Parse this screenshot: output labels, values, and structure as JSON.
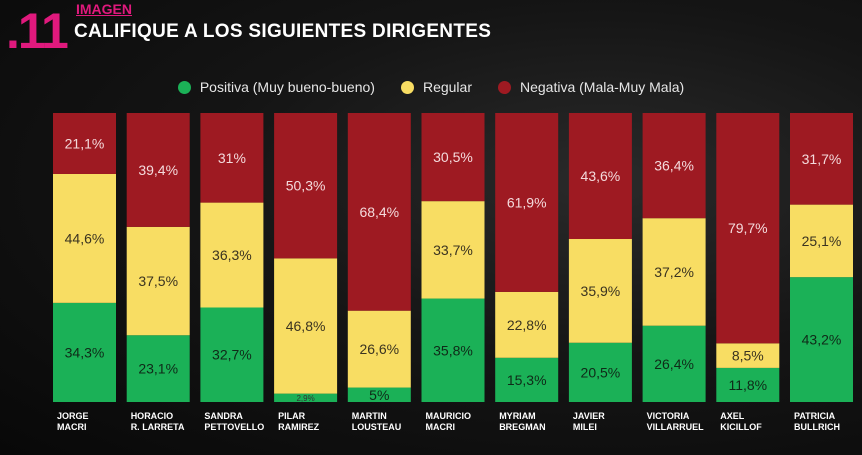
{
  "header": {
    "slide_number": ".11",
    "section": "IMAGEN",
    "title": "CALIFIQUE A LOS SIGUIENTES DIRIGENTES"
  },
  "colors": {
    "positiva": "#1bb157",
    "regular": "#f8dd63",
    "negativa": "#9e1a22",
    "accent": "#e0197d"
  },
  "chart_data": {
    "type": "bar",
    "stacked": true,
    "ylim": [
      0,
      100
    ],
    "legend_position": "top-center",
    "categories": [
      "JORGE MACRI",
      "HORACIO R. LARRETA",
      "SANDRA PETTOVELLO",
      "PILAR RAMIREZ",
      "MARTIN LOUSTEAU",
      "MAURICIO MACRI",
      "MYRIAM BREGMAN",
      "JAVIER MILEI",
      "VICTORIA VILLARRUEL",
      "AXEL KICILLOF",
      "PATRICIA BULLRICH"
    ],
    "category_lines": [
      [
        "JORGE",
        "MACRI"
      ],
      [
        "HORACIO",
        "R. LARRETA"
      ],
      [
        "SANDRA",
        "PETTOVELLO"
      ],
      [
        "PILAR",
        "RAMIREZ"
      ],
      [
        "MARTIN",
        "LOUSTEAU"
      ],
      [
        "MAURICIO",
        "MACRI"
      ],
      [
        "MYRIAM",
        "BREGMAN"
      ],
      [
        "JAVIER",
        "MILEI"
      ],
      [
        "VICTORIA",
        "VILLARRUEL"
      ],
      [
        "AXEL",
        "KICILLOF"
      ],
      [
        "PATRICIA",
        "BULLRICH"
      ]
    ],
    "series": [
      {
        "name": "Positiva (Muy bueno-bueno)",
        "values": [
          34.3,
          23.1,
          32.7,
          2.9,
          5,
          35.8,
          15.3,
          20.5,
          26.4,
          11.8,
          43.2
        ],
        "labels": [
          "34,3%",
          "23,1%",
          "32,7%",
          "2,9%",
          "5%",
          "35,8%",
          "15,3%",
          "20,5%",
          "26,4%",
          "11,8%",
          "43,2%"
        ]
      },
      {
        "name": "Regular",
        "values": [
          44.6,
          37.5,
          36.3,
          46.8,
          26.6,
          33.7,
          22.8,
          35.9,
          37.2,
          8.5,
          25.1
        ],
        "labels": [
          "44,6%",
          "37,5%",
          "36,3%",
          "46,8%",
          "26,6%",
          "33,7%",
          "22,8%",
          "35,9%",
          "37,2%",
          "8,5%",
          "25,1%"
        ]
      },
      {
        "name": "Negativa (Mala-Muy Mala)",
        "values": [
          21.1,
          39.4,
          31,
          50.3,
          68.4,
          30.5,
          61.9,
          43.6,
          36.4,
          79.7,
          31.7
        ],
        "labels": [
          "21,1%",
          "39,4%",
          "31%",
          "50,3%",
          "68,4%",
          "30,5%",
          "61,9%",
          "43,6%",
          "36,4%",
          "79,7%",
          "31,7%"
        ]
      }
    ]
  }
}
